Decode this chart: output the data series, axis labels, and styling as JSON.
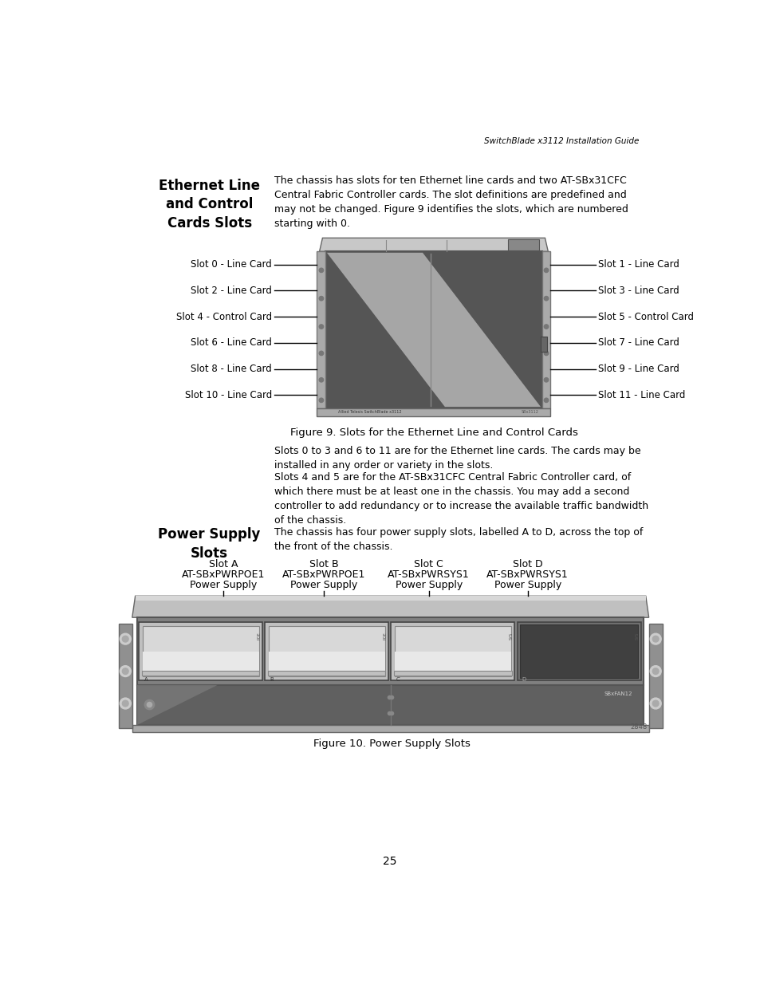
{
  "header_text": "SwitchBlade x3112 Installation Guide",
  "section1_title": "Ethernet Line\nand Control\nCards Slots",
  "section1_body": "The chassis has slots for ten Ethernet line cards and two AT-SBx31CFC\nCentral Fabric Controller cards. The slot definitions are predefined and\nmay not be changed. Figure 9 identifies the slots, which are numbered\nstarting with 0.",
  "fig9_caption": "Figure 9. Slots for the Ethernet Line and Control Cards",
  "left_labels": [
    "Slot 0 - Line Card",
    "Slot 2 - Line Card",
    "Slot 4 - Control Card",
    "Slot 6 - Line Card",
    "Slot 8 - Line Card",
    "Slot 10 - Line Card"
  ],
  "right_labels": [
    "Slot 1 - Line Card",
    "Slot 3 - Line Card",
    "Slot 5 - Control Card",
    "Slot 7 - Line Card",
    "Slot 9 - Line Card",
    "Slot 11 - Line Card"
  ],
  "body_text1": "Slots 0 to 3 and 6 to 11 are for the Ethernet line cards. The cards may be\ninstalled in any order or variety in the slots.",
  "body_text2": "Slots 4 and 5 are for the AT-SBx31CFC Central Fabric Controller card, of\nwhich there must be at least one in the chassis. You may add a second\ncontroller to add redundancy or to increase the available traffic bandwidth\nof the chassis.",
  "section2_title": "Power Supply\nSlots",
  "section2_body": "The chassis has four power supply slots, labelled A to D, across the top of\nthe front of the chassis.",
  "power_slot_labels": [
    "Slot A",
    "Slot B",
    "Slot C",
    "Slot D"
  ],
  "power_slot_models": [
    "AT-SBxPWRPOE1",
    "AT-SBxPWRPOE1",
    "AT-SBxPWRSYS1",
    "AT-SBxPWRSYS1"
  ],
  "power_slot_types": [
    "Power Supply",
    "Power Supply",
    "Power Supply",
    "Power Supply"
  ],
  "fig10_caption": "Figure 10. Power Supply Slots",
  "page_number": "25",
  "ref_num1": "2848"
}
